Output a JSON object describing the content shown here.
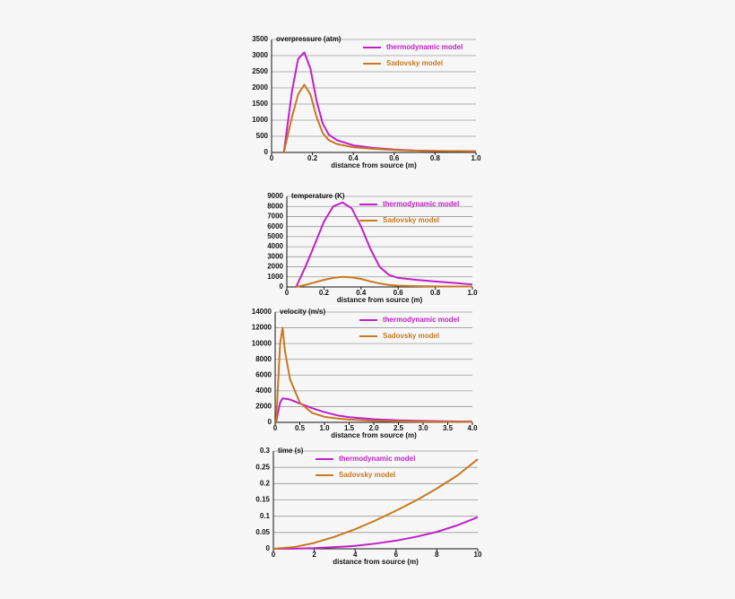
{
  "chart_data": [
    {
      "type": "line",
      "ylabel": "overpressure (atm)",
      "xlabel": "distance from source (m)",
      "x": [
        0.06,
        0.1,
        0.13,
        0.16,
        0.19,
        0.22,
        0.25,
        0.28,
        0.32,
        0.4,
        0.5,
        0.6,
        0.7,
        0.8,
        1.0
      ],
      "series": [
        {
          "name": "thermodynamic model",
          "color": "#c020c8",
          "values": [
            0,
            1900,
            2900,
            3100,
            2600,
            1600,
            900,
            550,
            380,
            220,
            140,
            90,
            60,
            45,
            35
          ]
        },
        {
          "name": "Sadovsky model",
          "color": "#c87820",
          "values": [
            0,
            1100,
            1800,
            2100,
            1800,
            1100,
            600,
            380,
            260,
            160,
            110,
            75,
            55,
            45,
            35
          ]
        }
      ],
      "xlim": [
        0,
        1
      ],
      "xticks": [
        0,
        0.2,
        0.4,
        0.6,
        0.8,
        {
          "value": 1,
          "label": "1.0"
        }
      ],
      "ylim": [
        0,
        3500
      ],
      "yticks": [
        0,
        500,
        1000,
        1500,
        2000,
        2500,
        3000,
        3500
      ],
      "grid": true,
      "legend": "upper right"
    },
    {
      "type": "line",
      "ylabel": "temperature (K)",
      "xlabel": "distance from source (m)",
      "x": [
        0.05,
        0.1,
        0.15,
        0.2,
        0.25,
        0.3,
        0.35,
        0.4,
        0.45,
        0.5,
        0.55,
        0.6,
        0.7,
        0.8,
        0.9,
        1.0
      ],
      "series": [
        {
          "name": "thermodynamic model",
          "color": "#c020c8",
          "values": [
            0,
            2000,
            4200,
            6500,
            8000,
            8400,
            7800,
            6000,
            3800,
            2000,
            1200,
            900,
            700,
            550,
            400,
            250
          ]
        },
        {
          "name": "Sadovsky model",
          "color": "#c87820",
          "values": [
            0,
            200,
            450,
            700,
            900,
            1000,
            950,
            800,
            550,
            350,
            200,
            120,
            80,
            60,
            50,
            40
          ]
        }
      ],
      "xlim": [
        0,
        1
      ],
      "xticks": [
        0,
        0.2,
        0.4,
        0.6,
        0.8,
        {
          "value": 1,
          "label": "1.0"
        }
      ],
      "ylim": [
        0,
        9000
      ],
      "yticks": [
        0,
        1000,
        2000,
        3000,
        4000,
        5000,
        6000,
        7000,
        8000,
        9000
      ],
      "grid": true,
      "legend": "upper right"
    },
    {
      "type": "line",
      "ylabel": "velocity (m/s)",
      "xlabel": "distance from source (m)",
      "x": [
        0.02,
        0.06,
        0.1,
        0.15,
        0.2,
        0.3,
        0.5,
        0.75,
        1,
        1.25,
        1.5,
        2,
        2.5,
        3,
        3.5,
        4
      ],
      "series": [
        {
          "name": "thermodynamic model",
          "color": "#c020c8",
          "values": [
            0,
            1300,
            2500,
            3050,
            3000,
            2900,
            2400,
            1800,
            1300,
            900,
            650,
            400,
            250,
            180,
            130,
            100
          ]
        },
        {
          "name": "Sadovsky model",
          "color": "#c87820",
          "values": [
            0,
            5000,
            10000,
            12000,
            9000,
            5500,
            2500,
            1200,
            700,
            500,
            350,
            200,
            130,
            90,
            70,
            50
          ]
        }
      ],
      "xlim": [
        0,
        4
      ],
      "xticks": [
        0,
        0.5,
        {
          "value": 1,
          "label": "1.0"
        },
        1.5,
        {
          "value": 2,
          "label": "2.0"
        },
        2.5,
        {
          "value": 3,
          "label": "3.0"
        },
        3.5,
        {
          "value": 4,
          "label": "4.0"
        }
      ],
      "ylim": [
        0,
        14000
      ],
      "yticks": [
        0,
        2000,
        4000,
        6000,
        8000,
        10000,
        12000,
        14000
      ],
      "grid": true,
      "legend": "upper right"
    },
    {
      "type": "line",
      "ylabel": "time (s)",
      "xlabel": "distance from source (m)",
      "x": [
        0,
        1,
        2,
        3,
        4,
        5,
        6,
        7,
        8,
        9,
        10
      ],
      "series": [
        {
          "name": "thermodynamic model",
          "color": "#c020c8",
          "values": [
            0,
            0.0005,
            0.002,
            0.005,
            0.009,
            0.016,
            0.025,
            0.037,
            0.052,
            0.072,
            0.097
          ]
        },
        {
          "name": "Sadovsky model",
          "color": "#c87820",
          "values": [
            0,
            0.005,
            0.018,
            0.037,
            0.06,
            0.087,
            0.117,
            0.149,
            0.185,
            0.225,
            0.275
          ]
        }
      ],
      "xlim": [
        0,
        10
      ],
      "xticks": [
        0,
        2,
        4,
        6,
        8,
        10
      ],
      "ylim": [
        0,
        0.3
      ],
      "yticks": [
        0,
        0.05,
        0.1,
        0.15,
        0.2,
        0.25,
        0.3
      ],
      "grid": true,
      "legend": "upper left"
    }
  ]
}
